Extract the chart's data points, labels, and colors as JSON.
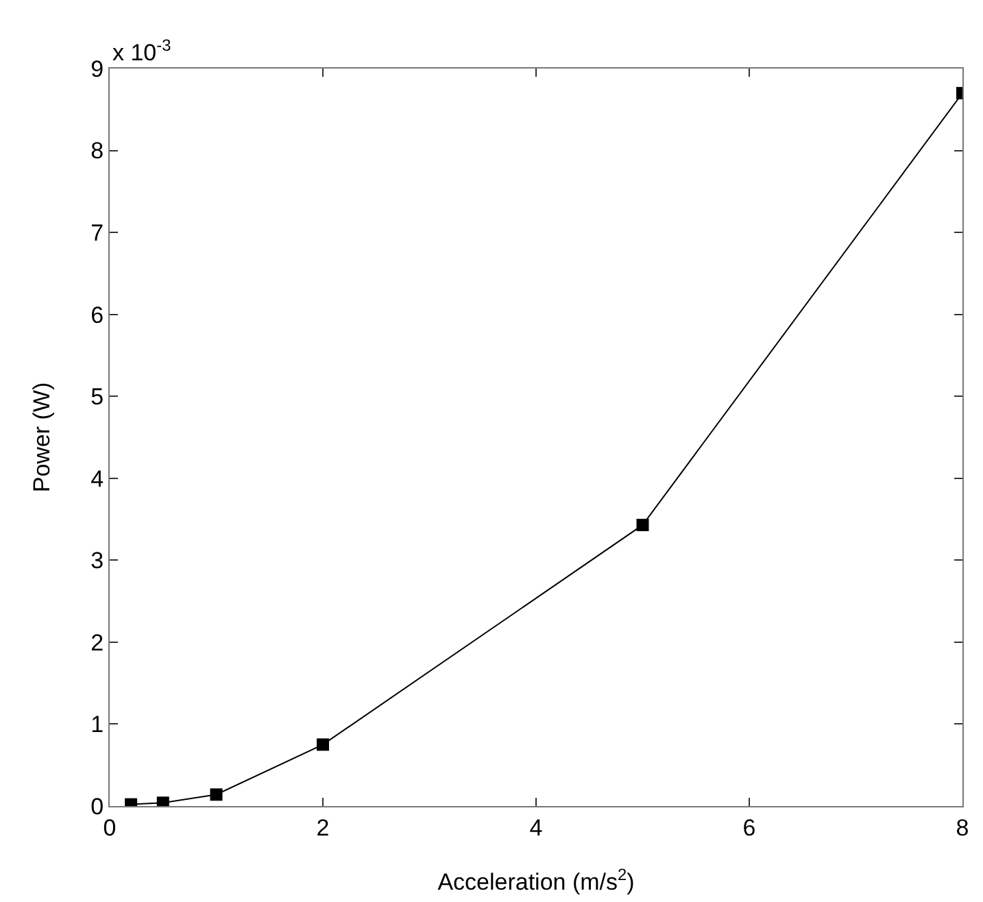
{
  "chart_data": {
    "type": "line",
    "xlabel": "Acceleration (m/s$^{2}$)",
    "ylabel": "Power (W)",
    "annotations": [
      "x 10$^{-3}$"
    ],
    "x": [
      0.2,
      0.5,
      1,
      2,
      5,
      8
    ],
    "series": [
      {
        "color": "#000000",
        "values": [
          0.02,
          0.04,
          0.14,
          0.75,
          3.43,
          8.7
        ]
      }
    ],
    "xlim": [
      0,
      8
    ],
    "xticks": [
      0,
      2,
      4,
      6,
      8
    ],
    "ylim": [
      0,
      9
    ],
    "yticks": [
      0,
      1,
      2,
      3,
      4,
      5,
      6,
      7,
      8,
      9
    ],
    "grid": false,
    "marker": "square",
    "line_style": "solid"
  }
}
